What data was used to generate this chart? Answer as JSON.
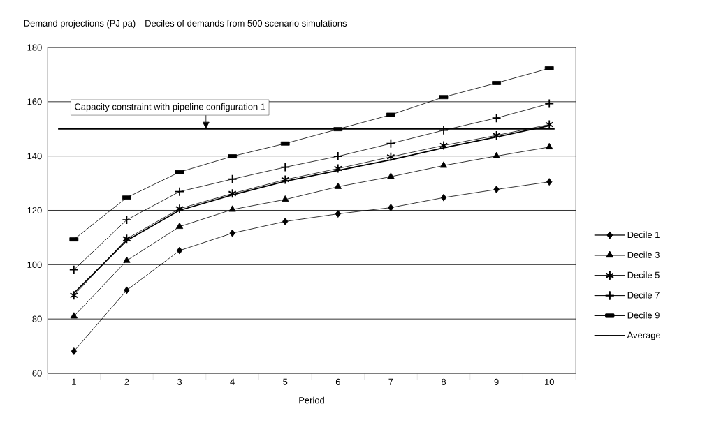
{
  "chart_data": {
    "type": "line",
    "title": "Demand projections (PJ pa)—Deciles of demands from 500 scenario simulations",
    "xlabel": "Period",
    "categories": [
      "1",
      "2",
      "3",
      "4",
      "5",
      "6",
      "7",
      "8",
      "9",
      "10"
    ],
    "ylim": [
      60,
      180
    ],
    "yticks": [
      60,
      80,
      100,
      120,
      140,
      160,
      180
    ],
    "grid": "y",
    "legend": "right",
    "ref_lines": [
      {
        "axis": "y",
        "value": 150,
        "label": "Capacity constraint with pipeline configuration 1",
        "color": "#000000"
      }
    ],
    "series": [
      {
        "name": "Decile 1",
        "color": "#000000",
        "marker": "diamond",
        "values": [
          68.1,
          90.6,
          105.2,
          111.6,
          115.9,
          118.7,
          121,
          124.7,
          127.7,
          130.5
        ]
      },
      {
        "name": "Decile 3",
        "color": "#000000",
        "marker": "triangle",
        "values": [
          81,
          101.5,
          114,
          120.3,
          124,
          128.7,
          132.4,
          136.5,
          140,
          143.3
        ]
      },
      {
        "name": "Decile 5",
        "color": "#000000",
        "marker": "cross",
        "values": [
          88.7,
          109.5,
          120.6,
          126.2,
          131.3,
          135.4,
          139.7,
          143.9,
          147.6,
          151.6
        ]
      },
      {
        "name": "Decile 7",
        "color": "#000000",
        "marker": "cross",
        "values": [
          98.1,
          116.5,
          126.9,
          131.5,
          135.9,
          139.9,
          144.6,
          149.5,
          154,
          159.3
        ]
      },
      {
        "name": "Decile 9",
        "color": "#000000",
        "marker": "square",
        "values": [
          109.3,
          124.7,
          134.1,
          139.9,
          144.6,
          149.9,
          155.2,
          161.7,
          166.9,
          172.3
        ]
      },
      {
        "name": "Average",
        "color": "#000000",
        "marker": "none",
        "values": [
          89.5,
          108.9,
          120,
          125.7,
          130.7,
          134.7,
          138.6,
          143,
          147,
          151.2
        ]
      }
    ]
  }
}
